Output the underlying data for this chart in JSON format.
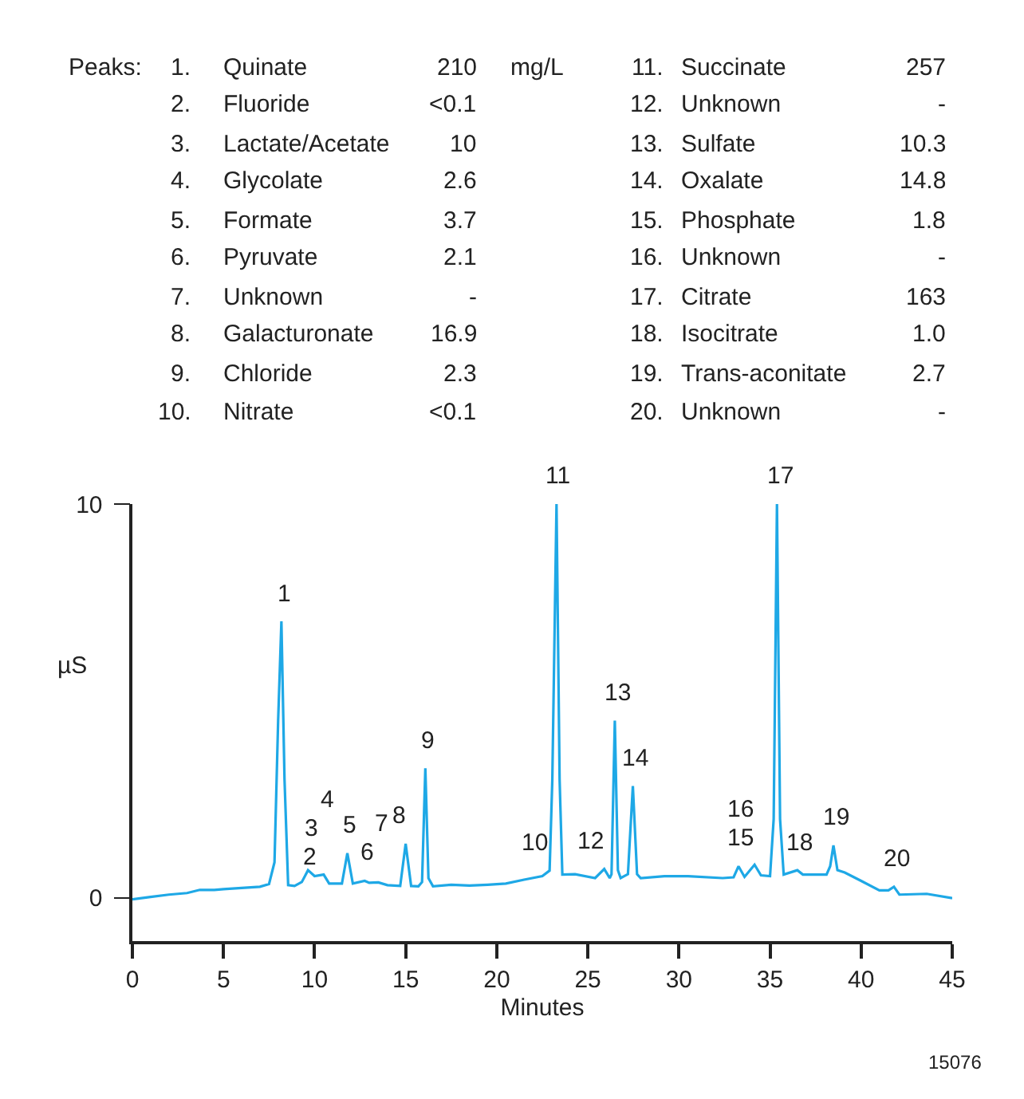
{
  "chart_data": {
    "type": "line",
    "xlabel": "Minutes",
    "ylabel": "µS",
    "x": [
      0,
      1,
      2,
      3,
      3.7,
      4.5,
      5,
      6,
      7,
      7.5,
      7.8,
      8.0,
      8.18,
      8.35,
      8.55,
      8.9,
      9.3,
      9.64,
      10.0,
      10.5,
      10.8,
      11.5,
      11.8,
      12.1,
      12.75,
      13.0,
      13.5,
      14.0,
      14.7,
      15.0,
      15.3,
      15.7,
      15.9,
      16.08,
      16.25,
      16.5,
      17.5,
      18.5,
      19.5,
      20.5,
      21.5,
      22.5,
      22.9,
      23.05,
      23.28,
      23.45,
      23.6,
      24.3,
      25.4,
      25.9,
      26.2,
      26.3,
      26.48,
      26.65,
      26.8,
      27.2,
      27.47,
      27.7,
      27.9,
      29.2,
      30.5,
      32.4,
      33.0,
      33.27,
      33.6,
      34.15,
      34.5,
      35.0,
      35.2,
      35.38,
      35.55,
      35.75,
      36.5,
      36.8,
      38.1,
      38.3,
      38.48,
      38.7,
      39.1,
      40.0,
      41.0,
      41.5,
      41.8,
      42.1,
      43.6,
      45
    ],
    "series": [
      {
        "color": "#1ea8e6",
        "values": [
          -0.04,
          0.02,
          0.08,
          0.12,
          0.2,
          0.2,
          0.22,
          0.25,
          0.28,
          0.35,
          0.9,
          4.5,
          7.02,
          3,
          0.32,
          0.3,
          0.4,
          0.7,
          0.55,
          0.59,
          0.36,
          0.36,
          1.13,
          0.36,
          0.43,
          0.38,
          0.39,
          0.32,
          0.3,
          1.37,
          0.3,
          0.29,
          0.4,
          3.29,
          0.5,
          0.29,
          0.33,
          0.31,
          0.33,
          0.36,
          0.46,
          0.55,
          0.69,
          3,
          10,
          3,
          0.59,
          0.6,
          0.5,
          0.73,
          0.5,
          0.6,
          4.5,
          0.7,
          0.5,
          0.6,
          2.84,
          0.6,
          0.5,
          0.55,
          0.55,
          0.5,
          0.52,
          0.8,
          0.53,
          0.84,
          0.57,
          0.55,
          2,
          10,
          2,
          0.59,
          0.7,
          0.59,
          0.59,
          0.8,
          1.33,
          0.7,
          0.64,
          0.43,
          0.19,
          0.19,
          0.28,
          0.08,
          0.1,
          -0.01
        ]
      }
    ],
    "xlim": [
      0,
      45
    ],
    "xticks": [
      0,
      5,
      10,
      15,
      20,
      25,
      30,
      35,
      40,
      45
    ],
    "ylim": [
      -1.1,
      10
    ],
    "yticks": [
      0,
      10
    ],
    "marker": "none",
    "line_style": "solid",
    "annotations": [
      "Peaks:",
      "1.\tQuinate\t210\tmg/L",
      "2.\tFluoride\t<0.1",
      "3.\tLactate/Acetate\t10",
      "4.\tGlycolate\t2.6",
      "5.\tFormate\t3.7",
      "6.\tPyruvate\t2.1",
      "7.\tUnknown\t-",
      "8.\tGalacturonate\t16.9",
      "9.\tChloride\t2.3",
      "10.\tNitrate\t<0.1",
      "11.\tSuccinate\t257",
      "12.\tUnknown\t-",
      "13.\tSulfate\t10.3",
      "14.\tOxalate\t14.8",
      "15.\tPhosphate\t1.8",
      "16.\tUnknown\t-",
      "17.\tCitrate\t163",
      "18.\tIsocitrate\t1.0",
      "19.\tTrans-aconitate\t2.7",
      "20.\tUnknown\t-",
      {
        "text": "1",
        "x": 8.18,
        "y": 7.02
      },
      {
        "text": "2",
        "x": 8.9,
        "y": 0.3
      },
      {
        "text": "3",
        "x": 9.64,
        "y": 0.7
      },
      {
        "text": "4",
        "x": 10.5,
        "y": 0.59
      },
      {
        "text": "5",
        "x": 11.8,
        "y": 1.13
      },
      {
        "text": "6",
        "x": 12.75,
        "y": 0.43
      },
      {
        "text": "7",
        "x": 13.5,
        "y": 0.39
      },
      {
        "text": "8",
        "x": 15.0,
        "y": 1.37
      },
      {
        "text": "9",
        "x": 16.08,
        "y": 3.29
      },
      {
        "text": "10",
        "x": 22.9,
        "y": 0.69
      },
      {
        "text": "11",
        "x": 23.28,
        "y": 10
      },
      {
        "text": "12",
        "x": 25.9,
        "y": 0.73
      },
      {
        "text": "13",
        "x": 26.48,
        "y": 4.5
      },
      {
        "text": "14",
        "x": 27.47,
        "y": 2.84
      },
      {
        "text": "15",
        "x": 33.27,
        "y": 0.8
      },
      {
        "text": "16",
        "x": 34.15,
        "y": 0.84
      },
      {
        "text": "17",
        "x": 35.38,
        "y": 10
      },
      {
        "text": "18",
        "x": 36.5,
        "y": 0.7
      },
      {
        "text": "19",
        "x": 38.48,
        "y": 1.33
      },
      {
        "text": "20",
        "x": 41.8,
        "y": 0.28
      },
      "15076"
    ]
  }
}
